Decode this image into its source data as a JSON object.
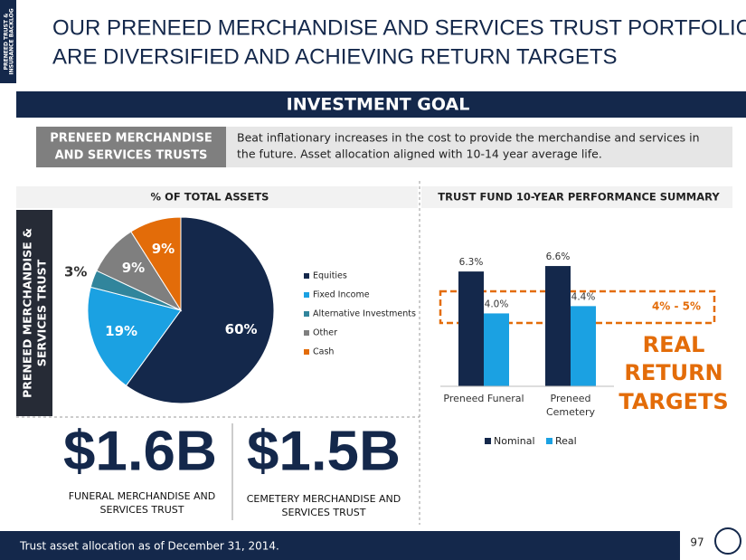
{
  "side_tab": [
    "PRENEED TRUST &",
    "INSURANCE BACKLOG"
  ],
  "title": [
    "OUR PRENEED MERCHANDISE AND SERVICES TRUST PORTFOLIOS",
    "ARE DIVERSIFIED AND ACHIEVING RETURN TARGETS"
  ],
  "goal_header": "INVESTMENT GOAL",
  "goal": {
    "label": [
      "PRENEED MERCHANDISE",
      "AND SERVICES TRUSTS"
    ],
    "text": [
      "Beat inflationary increases in the cost to provide the merchandise and services in",
      "the future.  Asset allocation aligned with 10-14 year average life."
    ]
  },
  "side_label": [
    "PRENEED MERCHANDISE &",
    "SERVICES TRUST"
  ],
  "chart_data": [
    {
      "type": "pie",
      "title": "% OF TOTAL ASSETS",
      "categories": [
        "Equities",
        "Fixed Income",
        "Alternative Investments",
        "Other",
        "Cash"
      ],
      "values": [
        60,
        19,
        3,
        9,
        9
      ],
      "value_labels": [
        "60%",
        "19%",
        "3%",
        "9%",
        "9%"
      ],
      "colors": [
        "#14284b",
        "#1ba1e2",
        "#31859c",
        "#7f7f7f",
        "#e36c09"
      ]
    },
    {
      "type": "bar",
      "title": "TRUST FUND 10-YEAR PERFORMANCE SUMMARY",
      "categories": [
        "Preneed Funeral",
        "Preneed Cemetery"
      ],
      "series": [
        {
          "name": "Nominal",
          "color": "#14284b",
          "values": [
            6.3,
            6.6
          ],
          "value_labels": [
            "6.3%",
            "6.6%"
          ]
        },
        {
          "name": "Real",
          "color": "#1ba1e2",
          "values": [
            4.0,
            4.4
          ],
          "value_labels": [
            "4.0%",
            "4.4%"
          ]
        }
      ],
      "ylim": [
        0,
        7
      ]
    }
  ],
  "totals": [
    {
      "value": "$1.6B",
      "label": [
        "FUNERAL MERCHANDISE AND",
        "SERVICES TRUST"
      ]
    },
    {
      "value": "$1.5B",
      "label": [
        "CEMETERY MERCHANDISE AND",
        "SERVICES TRUST"
      ]
    }
  ],
  "target": {
    "range": "4% - 5%",
    "text": [
      "REAL",
      "RETURN",
      "TARGETS"
    ]
  },
  "footnote": "Trust asset allocation as of December 31, 2014.",
  "page_number": "97"
}
